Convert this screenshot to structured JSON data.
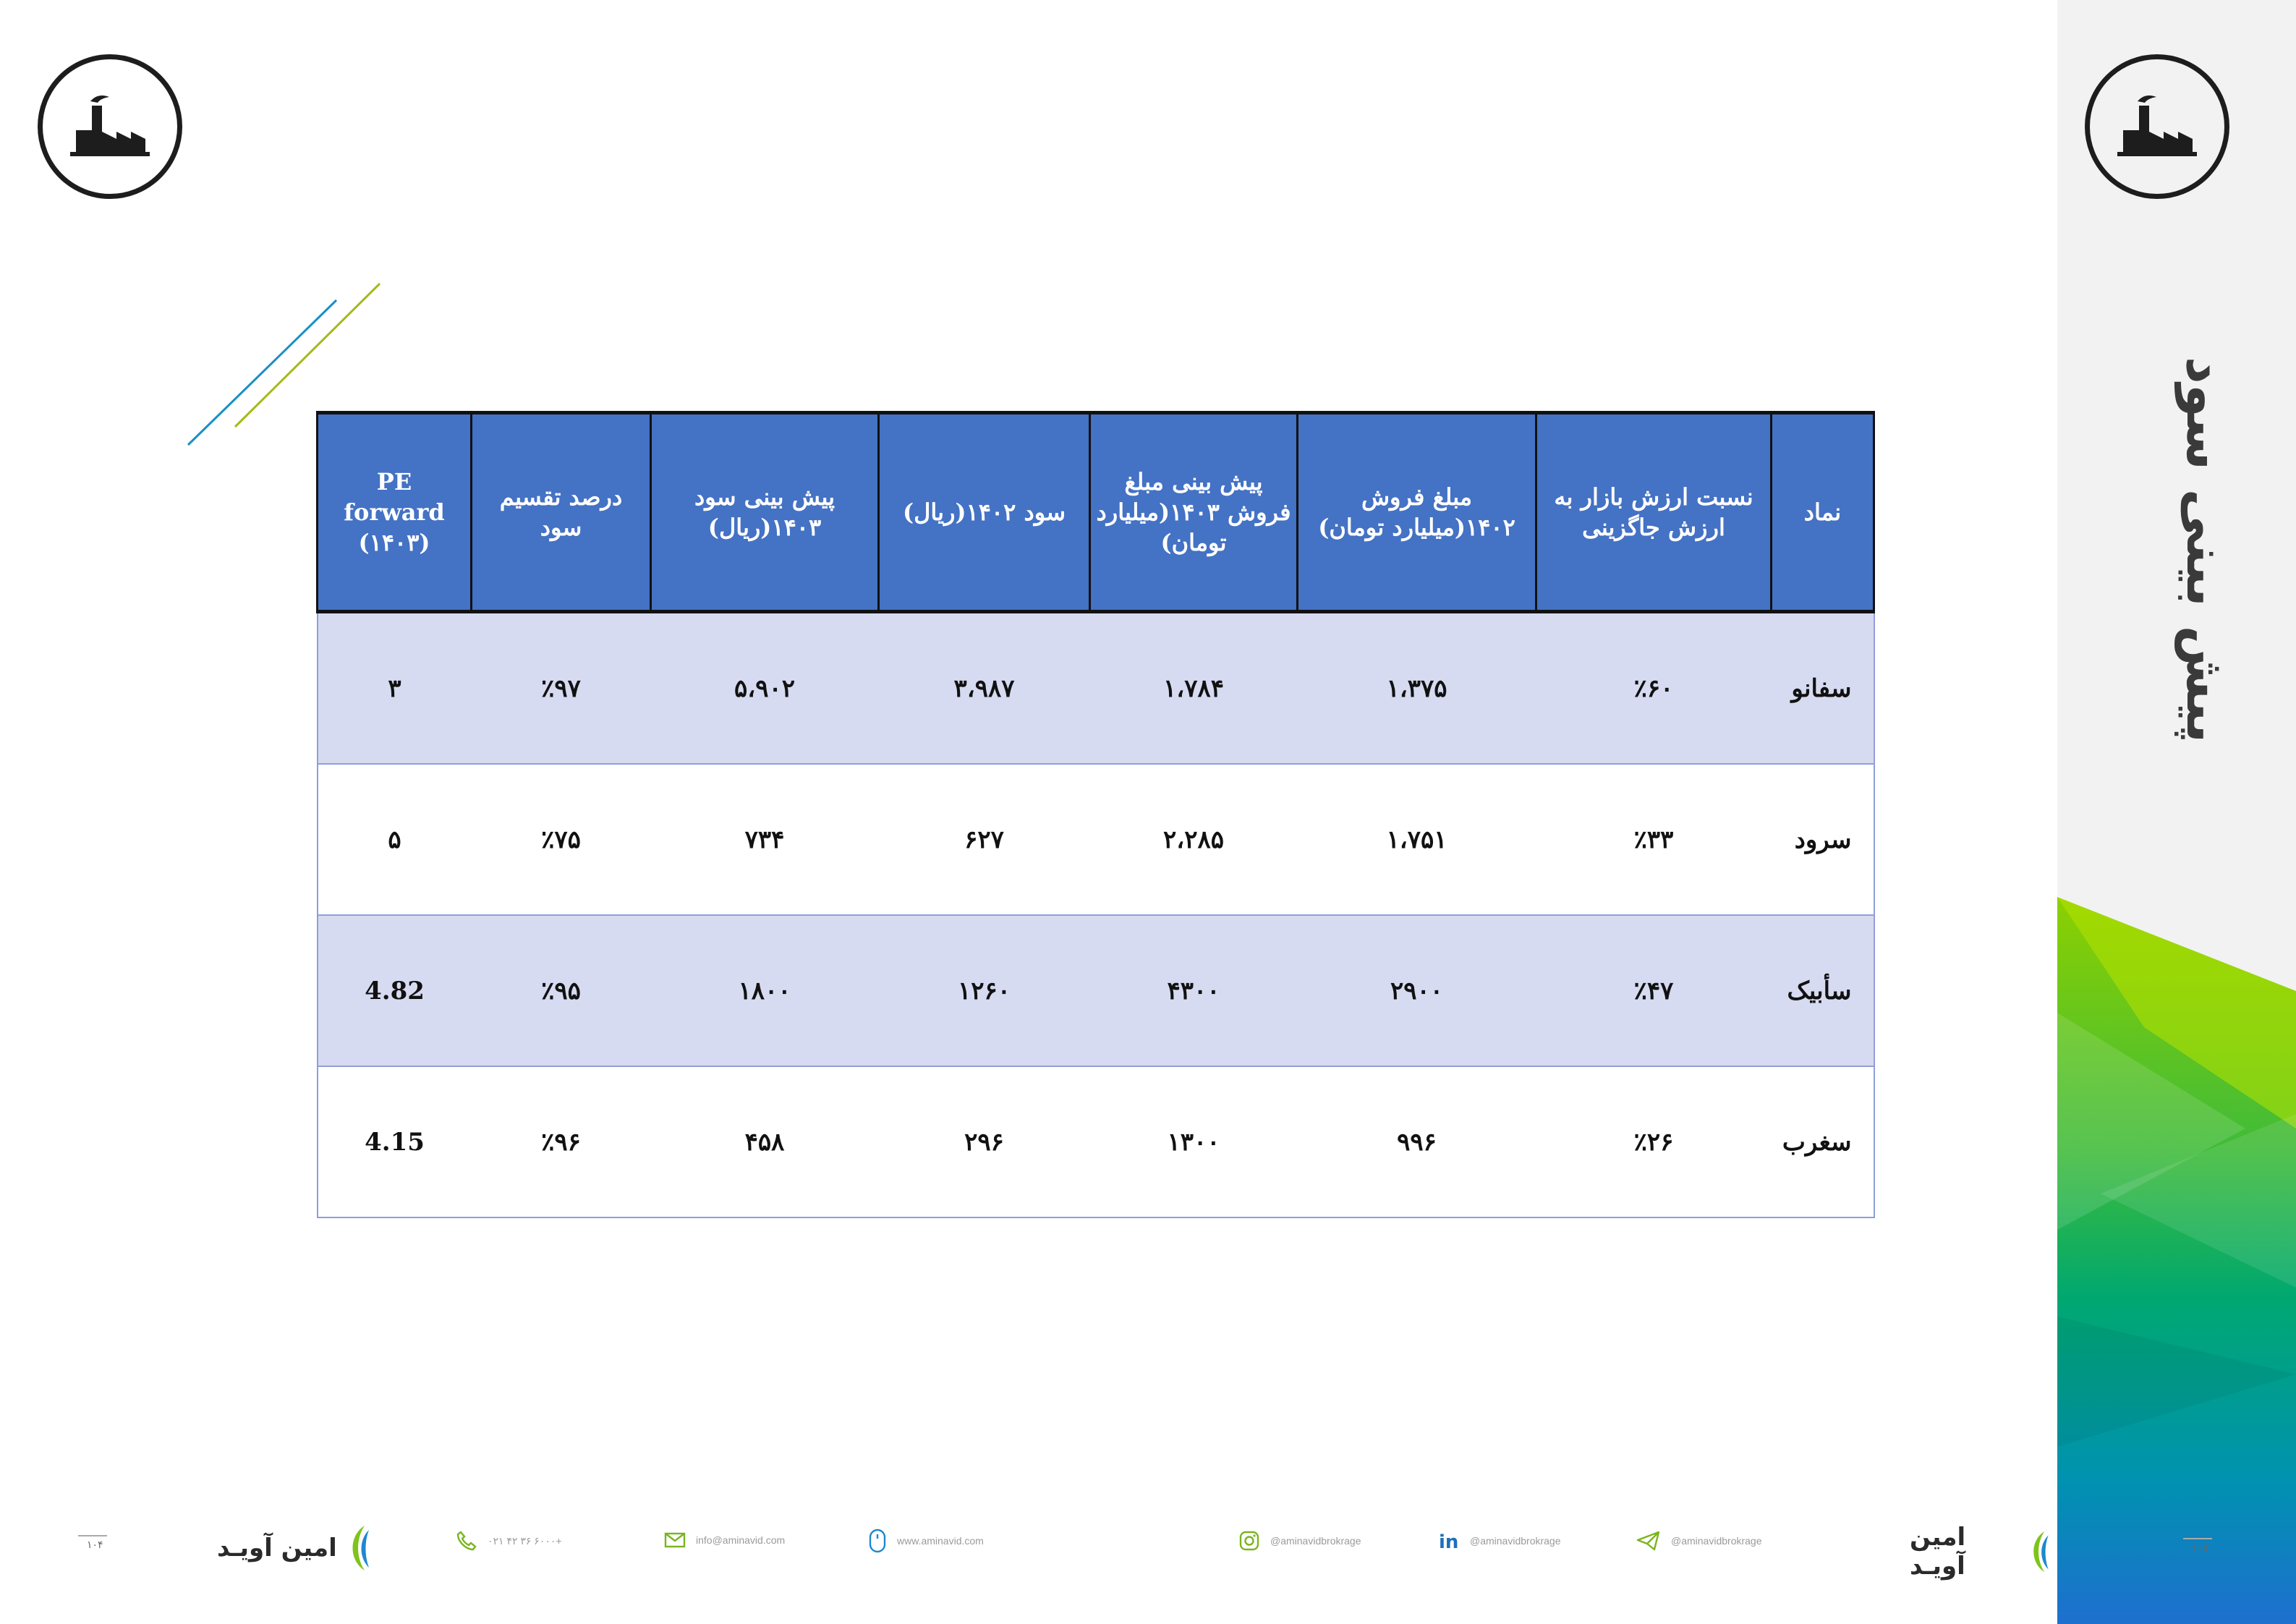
{
  "slide": {
    "title": "پیش بینی سود",
    "accent_colors": {
      "header_blue": "#4472c4",
      "row_tint": "#d7dbf1",
      "green": "#7fc31c",
      "teal": "#00a86b",
      "blue": "#1f78c8"
    }
  },
  "icons": {
    "factory_logo": "factory-icon"
  },
  "table": {
    "headers": [
      "نماد",
      "نسبت ارزش بازار به ارزش جاگزینی",
      "مبلغ فروش ۱۴۰۲(میلیارد تومان)",
      "پیش بینی مبلغ فروش ۱۴۰۳(میلیارد تومان)",
      "سود ۱۴۰۲(ریال)",
      "پیش بینی سود ۱۴۰۳(ریال)",
      "درصد تقسیم سود",
      "PE forward (۱۴۰۳)"
    ],
    "rows": [
      [
        "سفانو",
        "٪۶۰",
        "۱،۳۷۵",
        "۱،۷۸۴",
        "۳،۹۸۷",
        "۵،۹۰۲",
        "٪۹۷",
        "۳"
      ],
      [
        "سرود",
        "٪۳۳",
        "۱،۷۵۱",
        "۲،۲۸۵",
        "۶۲۷",
        "۷۳۴",
        "٪۷۵",
        "۵"
      ],
      [
        "سأبیک",
        "٪۴۷",
        "۲۹۰۰",
        "۴۳۰۰",
        "۱۲۶۰",
        "۱۸۰۰",
        "٪۹۵",
        "4.82"
      ],
      [
        "سغرب",
        "٪۲۶",
        "۹۹۶",
        "۱۳۰۰",
        "۲۹۶",
        "۴۵۸",
        "٪۹۶",
        "4.15"
      ]
    ]
  },
  "footer": {
    "brand_left": "امین آویـد",
    "brand_right": "امین آویـد",
    "phone": "۰۲۱ ۴۲ ۳۶ ۶۰۰۰+",
    "email": "info@aminavid.com",
    "website": "www.aminavid.com",
    "instagram": "@aminavidbrokrage",
    "linkedin": "@aminavidbrokrage",
    "telegram": "@aminavidbrokrage",
    "page_left": "۱۰۴",
    "page_right": "۱۰۵",
    "icons": [
      "phone-icon",
      "mail-icon",
      "mouse-icon",
      "instagram-icon",
      "linkedin-icon",
      "telegram-icon"
    ]
  }
}
